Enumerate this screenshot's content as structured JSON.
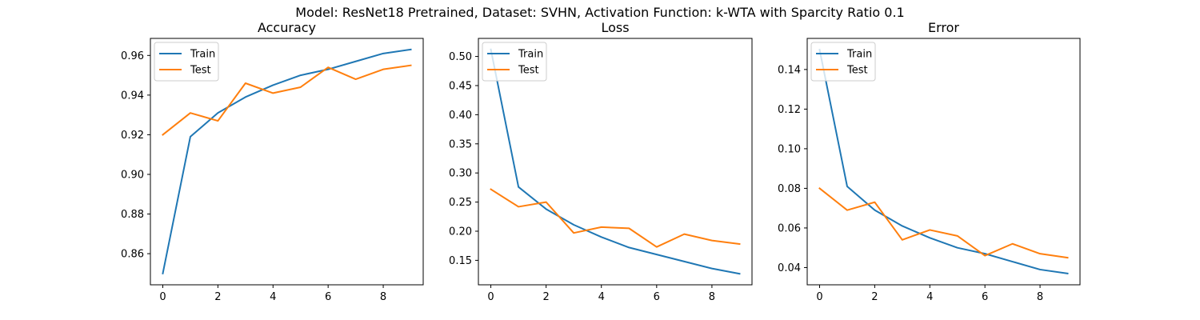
{
  "suptitle": "Model: ResNet18 Pretrained, Dataset: SVHN, Activation Function: k-WTA with Sparcity Ratio 0.1",
  "colors": {
    "train": "#1f77b4",
    "test": "#ff7f0e"
  },
  "chart_data": [
    {
      "type": "line",
      "title": "Accuracy",
      "xlabel": "",
      "ylabel": "",
      "x": [
        0,
        1,
        2,
        3,
        4,
        5,
        6,
        7,
        8,
        9
      ],
      "xticks": [
        0,
        2,
        4,
        6,
        8
      ],
      "xlim": [
        -0.45,
        9.45
      ],
      "yticks": [
        0.86,
        0.88,
        0.9,
        0.92,
        0.94,
        0.96
      ],
      "ytick_labels": [
        "0.86",
        "0.88",
        "0.90",
        "0.92",
        "0.94",
        "0.96"
      ],
      "ylim": [
        0.8443,
        0.9686
      ],
      "legend": "upper left",
      "series": [
        {
          "name": "Train",
          "color": "#1f77b4",
          "values": [
            0.85,
            0.919,
            0.931,
            0.939,
            0.945,
            0.95,
            0.953,
            0.957,
            0.961,
            0.963
          ]
        },
        {
          "name": "Test",
          "color": "#ff7f0e",
          "values": [
            0.92,
            0.931,
            0.927,
            0.946,
            0.941,
            0.944,
            0.954,
            0.948,
            0.953,
            0.955
          ]
        }
      ]
    },
    {
      "type": "line",
      "title": "Loss",
      "xlabel": "",
      "ylabel": "",
      "x": [
        0,
        1,
        2,
        3,
        4,
        5,
        6,
        7,
        8,
        9
      ],
      "xticks": [
        0,
        2,
        4,
        6,
        8
      ],
      "xlim": [
        -0.45,
        9.45
      ],
      "yticks": [
        0.15,
        0.2,
        0.25,
        0.3,
        0.35,
        0.4,
        0.45,
        0.5
      ],
      "ytick_labels": [
        "0.15",
        "0.20",
        "0.25",
        "0.30",
        "0.35",
        "0.40",
        "0.45",
        "0.50"
      ],
      "ylim": [
        0.108,
        0.531
      ],
      "legend": "upper left",
      "series": [
        {
          "name": "Train",
          "color": "#1f77b4",
          "values": [
            0.512,
            0.276,
            0.238,
            0.211,
            0.19,
            0.172,
            0.16,
            0.148,
            0.136,
            0.127
          ]
        },
        {
          "name": "Test",
          "color": "#ff7f0e",
          "values": [
            0.272,
            0.242,
            0.25,
            0.197,
            0.207,
            0.205,
            0.173,
            0.195,
            0.184,
            0.178
          ]
        }
      ]
    },
    {
      "type": "line",
      "title": "Error",
      "xlabel": "",
      "ylabel": "",
      "x": [
        0,
        1,
        2,
        3,
        4,
        5,
        6,
        7,
        8,
        9
      ],
      "xticks": [
        0,
        2,
        4,
        6,
        8
      ],
      "xlim": [
        -0.45,
        9.45
      ],
      "yticks": [
        0.04,
        0.06,
        0.08,
        0.1,
        0.12,
        0.14
      ],
      "ytick_labels": [
        "0.04",
        "0.06",
        "0.08",
        "0.10",
        "0.12",
        "0.14"
      ],
      "ylim": [
        0.0313,
        0.1557
      ],
      "legend": "upper left",
      "series": [
        {
          "name": "Train",
          "color": "#1f77b4",
          "values": [
            0.15,
            0.081,
            0.069,
            0.061,
            0.055,
            0.05,
            0.047,
            0.043,
            0.039,
            0.037
          ]
        },
        {
          "name": "Test",
          "color": "#ff7f0e",
          "values": [
            0.08,
            0.069,
            0.073,
            0.054,
            0.059,
            0.056,
            0.046,
            0.052,
            0.047,
            0.045
          ]
        }
      ]
    }
  ]
}
